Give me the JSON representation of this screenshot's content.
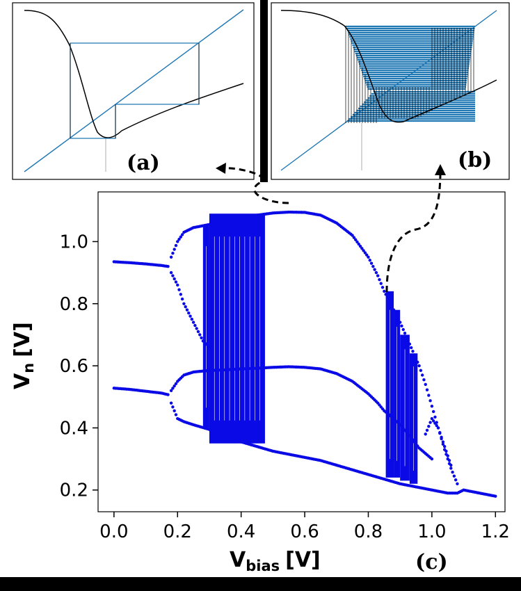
{
  "panels": {
    "a_label": "(a)",
    "b_label": "(b)",
    "c_label": "(c)"
  },
  "colors": {
    "bifurcation_points": "#0a0ae6",
    "cobweb": "#1f77b4",
    "curve": "#000000",
    "background": "#000000"
  },
  "chart_data": {
    "type": "scatter",
    "title": "",
    "xlabel_main": "V",
    "xlabel_sub": "bias",
    "xlabel_unit": "[V]",
    "ylabel_main": "V",
    "ylabel_sub": "n",
    "ylabel_unit": "[V]",
    "xlim": [
      -0.05,
      1.23
    ],
    "ylim": [
      0.13,
      1.16
    ],
    "xticks": [
      "0.0",
      "0.2",
      "0.4",
      "0.6",
      "0.8",
      "1.0",
      "1.2"
    ],
    "yticks": [
      "0.2",
      "0.4",
      "0.6",
      "0.8",
      "1.0"
    ],
    "grid": false,
    "series": [
      {
        "branch": "period-1 upper",
        "points": [
          [
            0.0,
            0.935
          ],
          [
            0.05,
            0.932
          ],
          [
            0.1,
            0.928
          ],
          [
            0.15,
            0.923
          ],
          [
            0.17,
            0.92
          ]
        ]
      },
      {
        "branch": "period-1 lower",
        "points": [
          [
            0.0,
            0.528
          ],
          [
            0.05,
            0.524
          ],
          [
            0.1,
            0.518
          ],
          [
            0.15,
            0.512
          ],
          [
            0.17,
            0.507
          ]
        ]
      },
      {
        "branch": "period-2 outer upper",
        "points": [
          [
            0.18,
            0.95
          ],
          [
            0.2,
            1.0
          ],
          [
            0.22,
            1.03
          ],
          [
            0.25,
            1.045
          ],
          [
            0.3,
            1.055
          ],
          [
            0.35,
            1.065
          ],
          [
            0.4,
            1.075
          ],
          [
            0.45,
            1.085
          ],
          [
            0.5,
            1.092
          ],
          [
            0.55,
            1.095
          ],
          [
            0.6,
            1.094
          ],
          [
            0.65,
            1.085
          ],
          [
            0.7,
            1.06
          ],
          [
            0.75,
            1.02
          ],
          [
            0.8,
            0.95
          ],
          [
            0.83,
            0.89
          ],
          [
            0.85,
            0.84
          ],
          [
            0.88,
            0.78
          ],
          [
            0.9,
            0.74
          ],
          [
            0.93,
            0.67
          ],
          [
            0.96,
            0.6
          ],
          [
            0.98,
            0.54
          ],
          [
            1.0,
            0.47
          ],
          [
            1.02,
            0.4
          ],
          [
            1.04,
            0.33
          ],
          [
            1.06,
            0.27
          ],
          [
            1.08,
            0.22
          ]
        ]
      },
      {
        "branch": "period-2 outer lower",
        "points": [
          [
            0.18,
            0.48
          ],
          [
            0.2,
            0.43
          ],
          [
            0.22,
            0.42
          ],
          [
            0.25,
            0.41
          ],
          [
            0.3,
            0.395
          ],
          [
            0.35,
            0.375
          ],
          [
            0.4,
            0.355
          ],
          [
            0.45,
            0.34
          ],
          [
            0.5,
            0.325
          ],
          [
            0.55,
            0.315
          ],
          [
            0.6,
            0.305
          ],
          [
            0.65,
            0.295
          ],
          [
            0.7,
            0.28
          ],
          [
            0.75,
            0.265
          ],
          [
            0.8,
            0.25
          ],
          [
            0.85,
            0.235
          ],
          [
            0.9,
            0.22
          ],
          [
            0.95,
            0.21
          ],
          [
            1.0,
            0.2
          ],
          [
            1.05,
            0.19
          ],
          [
            1.08,
            0.19
          ],
          [
            1.1,
            0.2
          ],
          [
            1.15,
            0.19
          ],
          [
            1.2,
            0.18
          ]
        ]
      },
      {
        "branch": "period-2 inner upper",
        "points": [
          [
            0.18,
            0.52
          ],
          [
            0.2,
            0.55
          ],
          [
            0.22,
            0.57
          ],
          [
            0.25,
            0.58
          ],
          [
            0.3,
            0.585
          ],
          [
            0.35,
            0.587
          ],
          [
            0.4,
            0.59
          ],
          [
            0.45,
            0.592
          ],
          [
            0.5,
            0.595
          ],
          [
            0.55,
            0.597
          ],
          [
            0.6,
            0.595
          ],
          [
            0.65,
            0.59
          ],
          [
            0.7,
            0.575
          ],
          [
            0.75,
            0.55
          ],
          [
            0.8,
            0.51
          ],
          [
            0.83,
            0.48
          ],
          [
            0.85,
            0.455
          ],
          [
            0.88,
            0.43
          ],
          [
            0.9,
            0.41
          ],
          [
            0.93,
            0.375
          ],
          [
            0.96,
            0.335
          ],
          [
            1.0,
            0.3
          ]
        ]
      },
      {
        "branch": "period-2 inner lower",
        "points": [
          [
            0.18,
            0.9
          ],
          [
            0.2,
            0.86
          ],
          [
            0.22,
            0.8
          ],
          [
            0.25,
            0.74
          ],
          [
            0.28,
            0.68
          ],
          [
            0.3,
            0.66
          ]
        ]
      },
      {
        "branch": "period-4 lobe",
        "points": [
          [
            0.98,
            0.38
          ],
          [
            1.0,
            0.43
          ],
          [
            1.02,
            0.4
          ],
          [
            1.04,
            0.34
          ],
          [
            1.06,
            0.28
          ]
        ]
      }
    ],
    "chaotic_bands": [
      {
        "x_from": 0.28,
        "x_to": 0.3,
        "y_from": 0.4,
        "y_to": 1.05
      },
      {
        "x_from": 0.3,
        "x_to": 0.475,
        "y_from": 0.35,
        "y_to": 1.09
      },
      {
        "x_from": 0.855,
        "x_to": 0.88,
        "y_from": 0.24,
        "y_to": 0.84
      },
      {
        "x_from": 0.88,
        "x_to": 0.9,
        "y_from": 0.24,
        "y_to": 0.78
      },
      {
        "x_from": 0.9,
        "x_to": 0.93,
        "y_from": 0.23,
        "y_to": 0.7
      },
      {
        "x_from": 0.93,
        "x_to": 0.955,
        "y_from": 0.22,
        "y_to": 0.64
      }
    ]
  }
}
